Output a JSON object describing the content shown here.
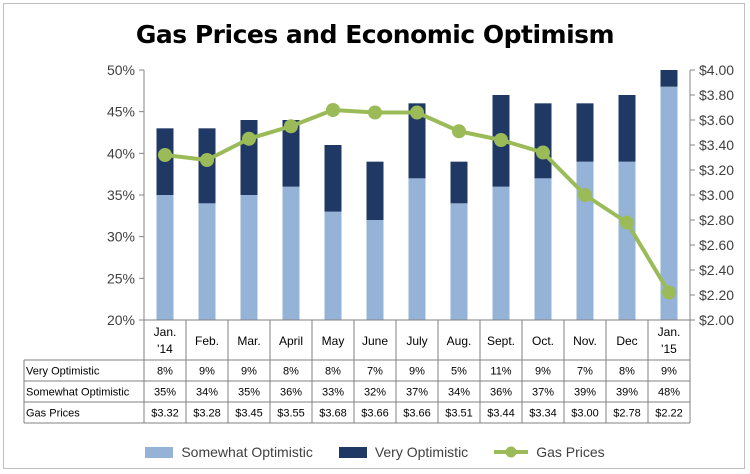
{
  "chart_data": {
    "type": "bar",
    "title": "Gas Prices and Economic Optimism",
    "categories": [
      [
        "Jan.",
        "'14"
      ],
      [
        "Feb."
      ],
      [
        "Mar."
      ],
      [
        "April"
      ],
      [
        "May"
      ],
      [
        "June"
      ],
      [
        "July"
      ],
      [
        "Aug."
      ],
      [
        "Sept."
      ],
      [
        "Oct."
      ],
      [
        "Nov."
      ],
      [
        "Dec"
      ],
      [
        "Jan.",
        "'15"
      ]
    ],
    "series": [
      {
        "name": "Somewhat Optimistic",
        "kind": "stacked-bar",
        "axis": "left",
        "color": "#95b3d7",
        "values": [
          35,
          34,
          35,
          36,
          33,
          32,
          37,
          34,
          36,
          37,
          39,
          39,
          48
        ]
      },
      {
        "name": "Very Optimistic",
        "kind": "stacked-bar",
        "axis": "left",
        "color": "#1f3864",
        "values": [
          8,
          9,
          9,
          8,
          8,
          7,
          9,
          5,
          11,
          9,
          7,
          8,
          9
        ]
      },
      {
        "name": "Gas Prices",
        "kind": "line",
        "axis": "right",
        "color": "#9bbb59",
        "values": [
          3.32,
          3.28,
          3.45,
          3.55,
          3.68,
          3.66,
          3.66,
          3.51,
          3.44,
          3.34,
          3.0,
          2.78,
          2.22
        ]
      }
    ],
    "y_left": {
      "min": 20,
      "max": 50,
      "step": 5,
      "ticks": [
        "20%",
        "25%",
        "30%",
        "35%",
        "40%",
        "45%",
        "50%"
      ]
    },
    "y_right": {
      "min": 2.0,
      "max": 4.0,
      "step": 0.2,
      "ticks": [
        "$2.00",
        "$2.20",
        "$2.40",
        "$2.60",
        "$2.80",
        "$3.00",
        "$3.20",
        "$3.40",
        "$3.60",
        "$3.80",
        "$4.00"
      ]
    },
    "table": {
      "rows": [
        {
          "label": "Very Optimistic",
          "cells": [
            "8%",
            "9%",
            "9%",
            "8%",
            "8%",
            "7%",
            "9%",
            "5%",
            "11%",
            "9%",
            "7%",
            "8%",
            "9%"
          ]
        },
        {
          "label": "Somewhat Optimistic",
          "cells": [
            "35%",
            "34%",
            "35%",
            "36%",
            "33%",
            "32%",
            "37%",
            "34%",
            "36%",
            "37%",
            "39%",
            "39%",
            "48%"
          ]
        },
        {
          "label": "Gas Prices",
          "cells": [
            "$3.32",
            "$3.28",
            "$3.45",
            "$3.55",
            "$3.68",
            "$3.66",
            "$3.66",
            "$3.51",
            "$3.44",
            "$3.34",
            "$3.00",
            "$2.78",
            "$2.22"
          ]
        }
      ]
    },
    "legend": {
      "position": "bottom",
      "items": [
        {
          "label": "Somewhat Optimistic",
          "color": "#95b3d7",
          "shape": "box"
        },
        {
          "label": "Very Optimistic",
          "color": "#1f3864",
          "shape": "box"
        },
        {
          "label": "Gas Prices",
          "color": "#9bbb59",
          "shape": "line-marker"
        }
      ]
    }
  }
}
